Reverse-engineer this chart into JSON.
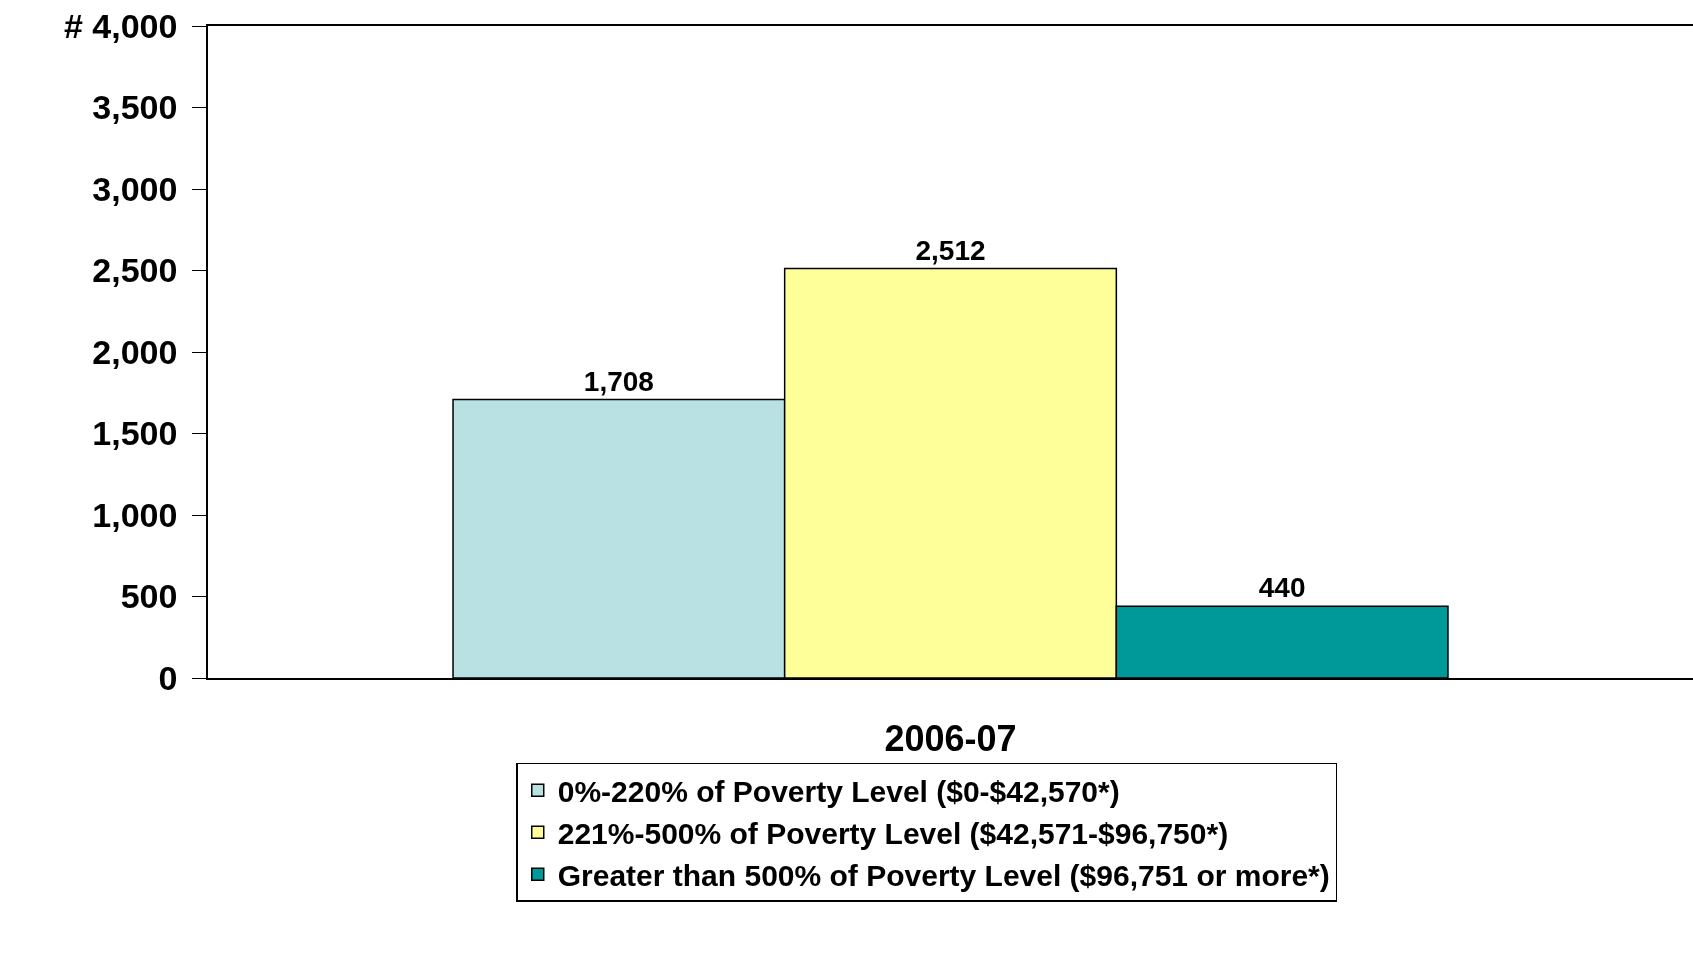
{
  "chart_data": {
    "type": "bar",
    "categories": [
      "2006-07"
    ],
    "series": [
      {
        "name": "0%-220% of Poverty Level ($0-$42,570*)",
        "color": "#b9e0e3",
        "values": [
          1708
        ],
        "value_labels": [
          "1,708"
        ]
      },
      {
        "name": "221%-500% of Poverty Level ($42,571-$96,750*)",
        "color": "#ffff99",
        "values": [
          2512
        ],
        "value_labels": [
          "2,512"
        ]
      },
      {
        "name": "Greater than 500% of Poverty Level ($96,751 or more*)",
        "color": "#009999",
        "values": [
          440
        ],
        "value_labels": [
          "440"
        ]
      }
    ],
    "ylim": [
      0,
      4000
    ],
    "yticks": [
      {
        "value": 0,
        "label": "0"
      },
      {
        "value": 500,
        "label": "500"
      },
      {
        "value": 1000,
        "label": "1,000"
      },
      {
        "value": 1500,
        "label": "1,500"
      },
      {
        "value": 2000,
        "label": "2,000"
      },
      {
        "value": 2500,
        "label": "2,500"
      },
      {
        "value": 3000,
        "label": "3,000"
      },
      {
        "value": 3500,
        "label": "3,500"
      },
      {
        "value": 4000,
        "label": "# 4,000"
      }
    ],
    "legend": "bottom"
  }
}
